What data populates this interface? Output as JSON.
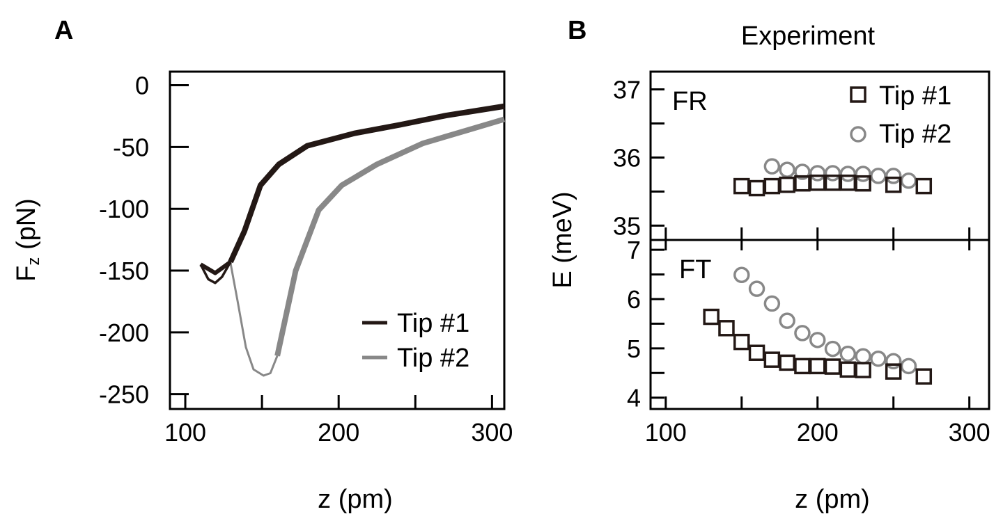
{
  "colors": {
    "tip1": "#231815",
    "tip2": "#888888",
    "axis": "#000000"
  },
  "chart_data": [
    {
      "type": "line",
      "panel_label": "A",
      "xlabel": "z (pm)",
      "ylabel_main": "F",
      "ylabel_sub": "z",
      "ylabel_unit": " (pN)",
      "xlim": [
        90,
        308
      ],
      "ylim": [
        -262,
        11
      ],
      "xticks": [
        100,
        200,
        300
      ],
      "xticks_minor": [
        150,
        250
      ],
      "yticks": [
        0,
        -50,
        -100,
        -150,
        -200,
        -250
      ],
      "legend": "bottom-right",
      "series": [
        {
          "name": "Tip #1",
          "color": "#231815",
          "x": [
            110,
            115,
            119.5,
            124,
            129.5,
            138.6,
            149,
            161,
            179.5,
            210,
            240,
            270,
            308
          ],
          "y": [
            -145,
            -157,
            -160,
            -155,
            -143,
            -118,
            -81,
            -64,
            -49,
            -39,
            -32,
            -24.5,
            -17
          ],
          "x_return": [
            110,
            119.5,
            129.5
          ],
          "y_return": [
            -145,
            -152,
            -143
          ]
        },
        {
          "name": "Tip #2",
          "color": "#888888",
          "x": [
            129.5,
            134,
            139.5,
            144.5,
            151,
            155.5,
            160,
            172,
            187,
            202,
            225,
            255,
            285,
            308
          ],
          "y": [
            -144,
            -174,
            -212,
            -230,
            -235,
            -233,
            -219,
            -150,
            -101,
            -81,
            -64,
            -47,
            -36,
            -27.5
          ]
        }
      ]
    },
    {
      "type": "scatter",
      "panel_label": "B",
      "title": "Experiment",
      "xlabel": "z (pm)",
      "ylabel": "E (meV)",
      "xlim": [
        90,
        313
      ],
      "xticks": [
        100,
        200,
        300
      ],
      "xticks_minor": [
        150,
        250
      ],
      "legend": "top-right",
      "subplots": [
        {
          "label": "FR",
          "ylim": [
            34.79,
            37.26
          ],
          "yticks": [
            35,
            36,
            37
          ],
          "yticks_minor": [
            35.5,
            36.5
          ],
          "series": [
            {
              "name": "Tip #1",
              "marker": "square",
              "color": "#231815",
              "x": [
                150,
                160,
                170,
                180,
                190,
                200,
                210,
                220,
                230,
                250,
                270
              ],
              "y": [
                35.58,
                35.55,
                35.58,
                35.6,
                35.62,
                35.63,
                35.63,
                35.63,
                35.62,
                35.6,
                35.58
              ]
            },
            {
              "name": "Tip #2",
              "marker": "circle",
              "color": "#888888",
              "x": [
                170,
                180,
                190,
                200,
                210,
                220,
                230,
                240,
                250,
                260
              ],
              "y": [
                35.87,
                35.82,
                35.79,
                35.77,
                35.77,
                35.76,
                35.76,
                35.73,
                35.73,
                35.66
              ]
            }
          ]
        },
        {
          "label": "FT",
          "ylim": [
            3.77,
            7.2
          ],
          "yticks": [
            4,
            5,
            6,
            7
          ],
          "yticks_minor": [
            4.5,
            5.5,
            6.5
          ],
          "series": [
            {
              "name": "Tip #1",
              "marker": "square",
              "color": "#231815",
              "x": [
                130,
                140,
                150,
                160,
                170,
                180,
                190,
                200,
                210,
                220,
                230,
                250,
                270
              ],
              "y": [
                5.64,
                5.41,
                5.13,
                4.91,
                4.77,
                4.71,
                4.64,
                4.64,
                4.63,
                4.57,
                4.56,
                4.53,
                4.43
              ]
            },
            {
              "name": "Tip #2",
              "marker": "circle",
              "color": "#888888",
              "x": [
                150,
                160,
                170,
                180,
                190,
                200,
                210,
                220,
                230,
                240,
                250,
                260
              ],
              "y": [
                6.49,
                6.21,
                5.91,
                5.56,
                5.31,
                5.17,
                4.99,
                4.89,
                4.84,
                4.79,
                4.74,
                4.64
              ]
            }
          ]
        }
      ]
    }
  ]
}
